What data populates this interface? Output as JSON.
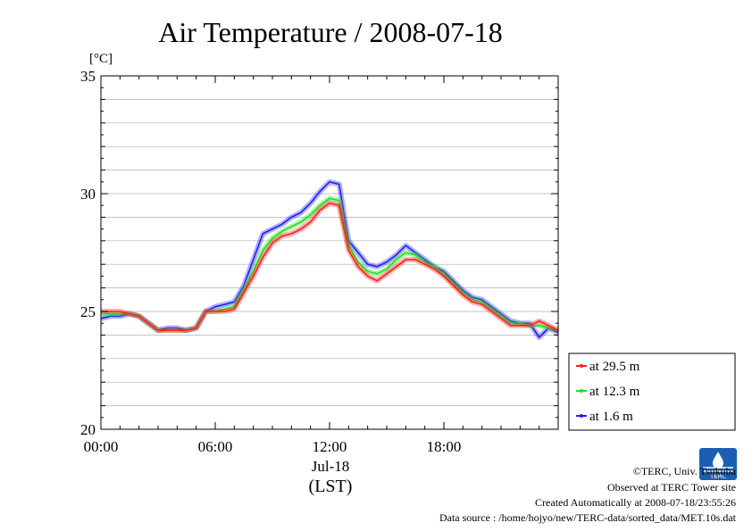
{
  "chart_data": {
    "type": "line",
    "title": "Air Temperature / 2008-07-18",
    "yunit": "[°C]",
    "ylim": [
      20,
      35
    ],
    "yticks": [
      20,
      25,
      30,
      35
    ],
    "xlim": [
      0,
      24
    ],
    "xticks": [
      0,
      6,
      12,
      18
    ],
    "xticklabels": [
      "00:00",
      "06:00",
      "12:00",
      "18:00"
    ],
    "date_label": "Jul-18",
    "xlabel": "(LST)",
    "grid": true,
    "legend_position": "bottom-right-outside",
    "series": [
      {
        "name": "at 29.5 m",
        "color": "#ff2020",
        "x": [
          0,
          0.5,
          1,
          1.5,
          2,
          2.5,
          3,
          3.5,
          4,
          4.5,
          5,
          5.5,
          6,
          6.5,
          7,
          7.5,
          8,
          8.5,
          9,
          9.5,
          10,
          10.5,
          11,
          11.5,
          12,
          12.5,
          13,
          13.5,
          14,
          14.5,
          15,
          15.5,
          16,
          16.5,
          17,
          17.5,
          18,
          18.5,
          19,
          19.5,
          20,
          20.5,
          21,
          21.5,
          22,
          22.5,
          23,
          23.5,
          24
        ],
        "values": [
          25.0,
          25.0,
          25.0,
          24.9,
          24.8,
          24.5,
          24.2,
          24.2,
          24.2,
          24.2,
          24.3,
          25.0,
          25.0,
          25.0,
          25.1,
          25.8,
          26.5,
          27.3,
          27.9,
          28.2,
          28.3,
          28.5,
          28.8,
          29.3,
          29.6,
          29.5,
          27.6,
          26.9,
          26.5,
          26.3,
          26.6,
          26.9,
          27.2,
          27.2,
          27.0,
          26.8,
          26.5,
          26.1,
          25.7,
          25.4,
          25.3,
          25.0,
          24.7,
          24.4,
          24.4,
          24.4,
          24.6,
          24.4,
          24.2
        ]
      },
      {
        "name": "at 12.3 m",
        "color": "#20e020",
        "x": [
          0,
          0.5,
          1,
          1.5,
          2,
          2.5,
          3,
          3.5,
          4,
          4.5,
          5,
          5.5,
          6,
          6.5,
          7,
          7.5,
          8,
          8.5,
          9,
          9.5,
          10,
          10.5,
          11,
          11.5,
          12,
          12.5,
          13,
          13.5,
          14,
          14.5,
          15,
          15.5,
          16,
          16.5,
          17,
          17.5,
          18,
          18.5,
          19,
          19.5,
          20,
          20.5,
          21,
          21.5,
          22,
          22.5,
          23,
          23.5,
          24
        ],
        "values": [
          24.9,
          24.9,
          24.9,
          24.9,
          24.8,
          24.5,
          24.2,
          24.2,
          24.2,
          24.2,
          24.3,
          25.0,
          25.0,
          25.1,
          25.2,
          25.9,
          26.7,
          27.6,
          28.1,
          28.4,
          28.6,
          28.8,
          29.1,
          29.5,
          29.8,
          29.7,
          27.8,
          27.1,
          26.7,
          26.6,
          26.8,
          27.2,
          27.5,
          27.4,
          27.1,
          26.9,
          26.6,
          26.2,
          25.8,
          25.5,
          25.4,
          25.1,
          24.8,
          24.5,
          24.5,
          24.4,
          24.4,
          24.3,
          24.2
        ]
      },
      {
        "name": "at 1.6 m",
        "color": "#2020ff",
        "x": [
          0,
          0.5,
          1,
          1.5,
          2,
          2.5,
          3,
          3.5,
          4,
          4.5,
          5,
          5.5,
          6,
          6.5,
          7,
          7.5,
          8,
          8.5,
          9,
          9.5,
          10,
          10.5,
          11,
          11.5,
          12,
          12.5,
          13,
          13.5,
          14,
          14.5,
          15,
          15.5,
          16,
          16.5,
          17,
          17.5,
          18,
          18.5,
          19,
          19.5,
          20,
          20.5,
          21,
          21.5,
          22,
          22.5,
          23,
          23.5,
          24
        ],
        "values": [
          24.7,
          24.8,
          24.8,
          24.9,
          24.8,
          24.5,
          24.2,
          24.3,
          24.3,
          24.2,
          24.3,
          25.0,
          25.2,
          25.3,
          25.4,
          26.1,
          27.2,
          28.3,
          28.5,
          28.7,
          29.0,
          29.2,
          29.6,
          30.1,
          30.5,
          30.4,
          28.0,
          27.5,
          27.0,
          26.9,
          27.1,
          27.4,
          27.8,
          27.5,
          27.2,
          26.9,
          26.7,
          26.3,
          25.9,
          25.6,
          25.5,
          25.2,
          24.9,
          24.6,
          24.5,
          24.5,
          23.9,
          24.3,
          24.1
        ]
      }
    ]
  },
  "footer": {
    "copyright": "©TERC, Univ. Tsukuba",
    "site": "Observed at TERC Tower site",
    "created": "Created Automatically at 2008-07-18/23:55:26",
    "source": "Data source : /home/hojyo/new/TERC-data/sorted_data/MET.10s.dat"
  },
  "logo_text": "TERC"
}
